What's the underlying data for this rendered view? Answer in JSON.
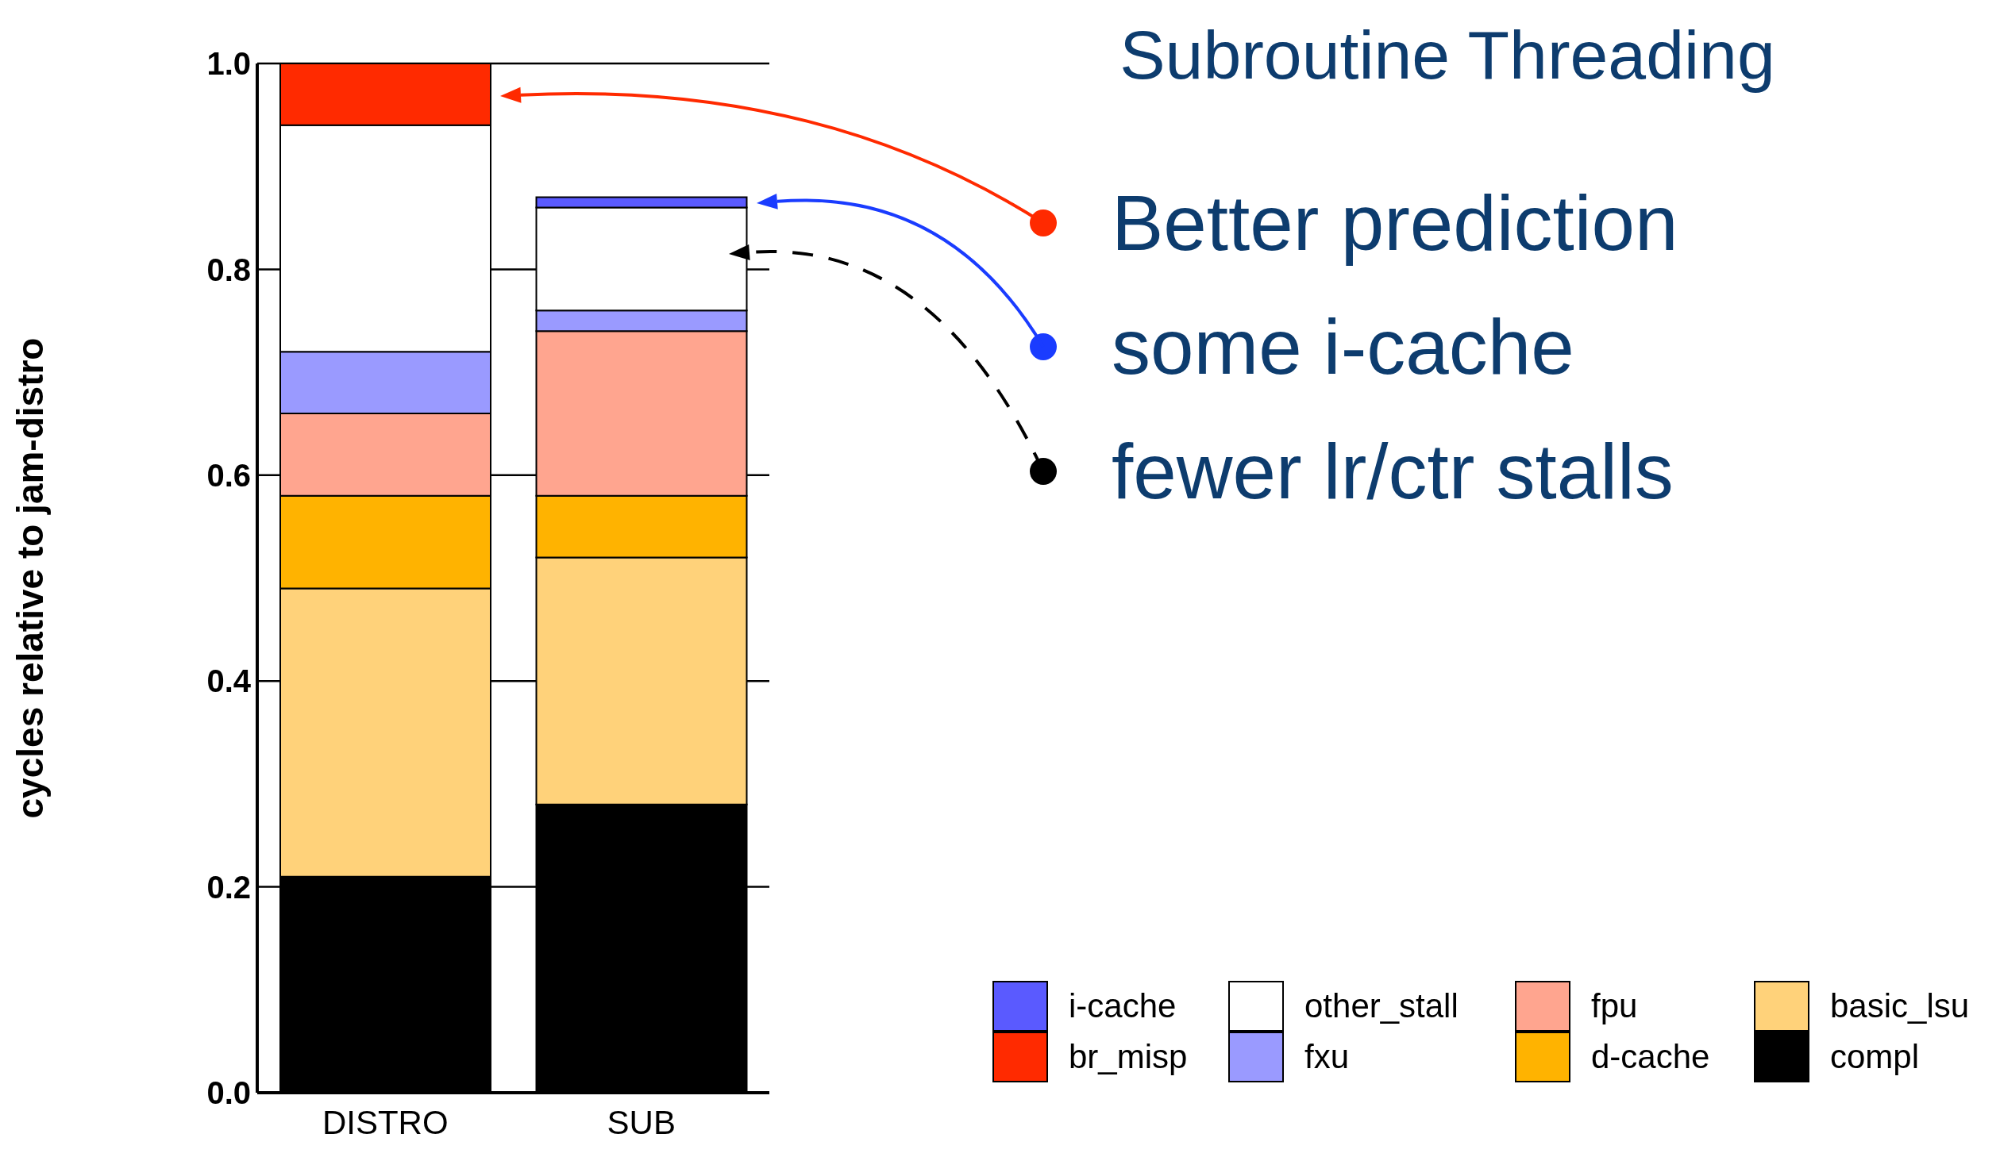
{
  "chart_data": {
    "type": "bar",
    "stacked": true,
    "title": "Subroutine Threading",
    "ylabel": "cycles relative to jam-distro",
    "categories": [
      "DISTRO",
      "SUB"
    ],
    "series": [
      {
        "name": "compl",
        "color": "#000000",
        "values": [
          0.21,
          0.28
        ]
      },
      {
        "name": "basic_lsu",
        "color": "#ffd27a",
        "values": [
          0.28,
          0.24
        ]
      },
      {
        "name": "d-cache",
        "color": "#ffb300",
        "values": [
          0.09,
          0.06
        ]
      },
      {
        "name": "fpu",
        "color": "#ffa58f",
        "values": [
          0.08,
          0.16
        ]
      },
      {
        "name": "fxu",
        "color": "#9a9aff",
        "values": [
          0.06,
          0.02
        ]
      },
      {
        "name": "other_stall",
        "color": "#ffffff",
        "values": [
          0.22,
          0.1
        ]
      },
      {
        "name": "br_misp",
        "color": "#ff2a00",
        "values": [
          0.06,
          0
        ]
      },
      {
        "name": "i-cache",
        "color": "#5a5aff",
        "values": [
          0,
          0.01
        ]
      }
    ],
    "ylim": [
      0,
      1
    ],
    "yticks": [
      {
        "value": 0,
        "label": "0.0"
      },
      0.2,
      0.4,
      0.6,
      0.8,
      {
        "value": 1,
        "label": "1.0"
      }
    ],
    "grid": "y",
    "legend": "bottom right",
    "annotations": [
      "Better prediction",
      "some i-cache",
      "fewer lr/ctr stalls"
    ]
  }
}
